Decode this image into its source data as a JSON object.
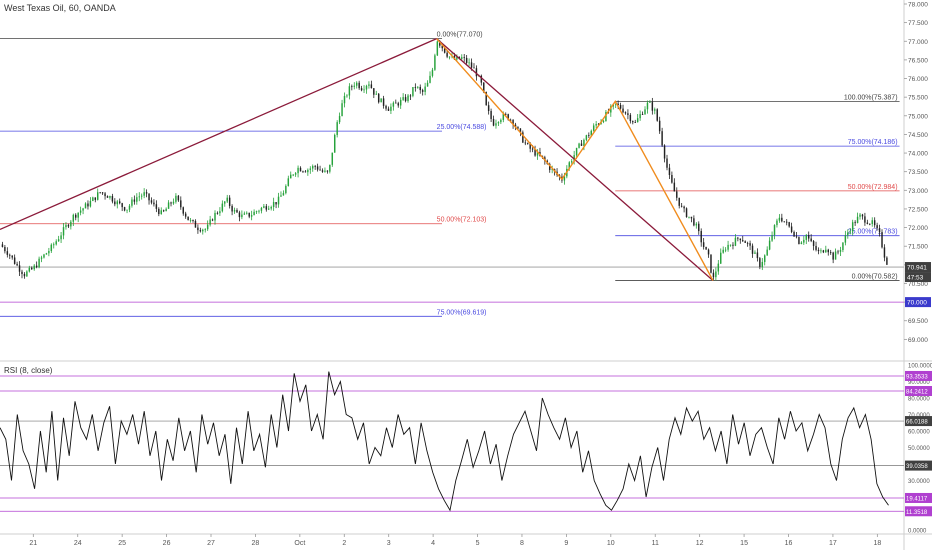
{
  "title": "West Texas Oil, 60, OANDA",
  "rsi_title": "RSI (8, close)",
  "colors": {
    "up": "#26a23b",
    "down": "#222222",
    "trend": "#8b1a3a",
    "harmonic": "#f08c1e",
    "fib_black": "#444444",
    "fib_blue": "#4a4ae0",
    "fib_red": "#e04a4a",
    "price_tag_dark": "#404040",
    "tag_violet": "#b040d0",
    "tag_blue": "#3a3acc"
  },
  "chart_data": [
    {
      "type": "candlestick",
      "symbol": "West Texas Oil",
      "timeframe": "60",
      "ylim": [
        68.5,
        78.0
      ],
      "y_ticks": [
        "78.000",
        "77.500",
        "77.000",
        "76.500",
        "76.000",
        "75.500",
        "75.000",
        "74.500",
        "74.000",
        "73.500",
        "73.000",
        "72.500",
        "72.000",
        "71.500",
        "71.000",
        "70.500",
        "70.000",
        "69.500",
        "69.000"
      ],
      "x_ticks": [
        {
          "t": 0.0,
          "label": "21"
        },
        {
          "t": 1.0,
          "label": "24"
        },
        {
          "t": 2.0,
          "label": "25"
        },
        {
          "t": 3.0,
          "label": "26"
        },
        {
          "t": 4.0,
          "label": "27"
        },
        {
          "t": 5.0,
          "label": "28"
        },
        {
          "t": 6.0,
          "label": "Oct"
        },
        {
          "t": 7.0,
          "label": "2"
        },
        {
          "t": 8.0,
          "label": "3"
        },
        {
          "t": 9.0,
          "label": "4"
        },
        {
          "t": 10.0,
          "label": "5"
        },
        {
          "t": 11.0,
          "label": "8"
        },
        {
          "t": 12.0,
          "label": "9"
        },
        {
          "t": 13.0,
          "label": "10"
        },
        {
          "t": 14.0,
          "label": "11"
        },
        {
          "t": 15.0,
          "label": "12"
        },
        {
          "t": 16.0,
          "label": "15"
        },
        {
          "t": 17.0,
          "label": "16"
        },
        {
          "t": 18.0,
          "label": "17"
        },
        {
          "t": 19.0,
          "label": "18"
        }
      ],
      "x_range": [
        -0.75,
        19.6
      ],
      "close_path": [
        [
          -0.75,
          71.55
        ],
        [
          -0.55,
          71.3
        ],
        [
          -0.35,
          70.95
        ],
        [
          -0.2,
          70.75
        ],
        [
          0.0,
          70.9
        ],
        [
          0.2,
          71.2
        ],
        [
          0.4,
          71.45
        ],
        [
          0.55,
          71.7
        ],
        [
          0.75,
          72.05
        ],
        [
          0.9,
          72.3
        ],
        [
          1.1,
          72.5
        ],
        [
          1.3,
          72.7
        ],
        [
          1.5,
          72.95
        ],
        [
          1.7,
          72.85
        ],
        [
          1.9,
          72.65
        ],
        [
          2.1,
          72.5
        ],
        [
          2.3,
          72.8
        ],
        [
          2.5,
          72.9
        ],
        [
          2.7,
          72.6
        ],
        [
          2.9,
          72.35
        ],
        [
          3.05,
          72.6
        ],
        [
          3.2,
          72.8
        ],
        [
          3.35,
          72.5
        ],
        [
          3.5,
          72.2
        ],
        [
          3.7,
          72.0
        ],
        [
          3.9,
          71.95
        ],
        [
          4.05,
          72.3
        ],
        [
          4.2,
          72.5
        ],
        [
          4.35,
          72.75
        ],
        [
          4.5,
          72.45
        ],
        [
          4.7,
          72.3
        ],
        [
          4.9,
          72.35
        ],
        [
          5.1,
          72.5
        ],
        [
          5.3,
          72.6
        ],
        [
          5.5,
          72.7
        ],
        [
          5.65,
          73.0
        ],
        [
          5.8,
          73.4
        ],
        [
          5.95,
          73.6
        ],
        [
          6.15,
          73.55
        ],
        [
          6.35,
          73.65
        ],
        [
          6.5,
          73.5
        ],
        [
          6.65,
          73.45
        ],
        [
          6.75,
          74.2
        ],
        [
          6.85,
          74.9
        ],
        [
          6.95,
          75.3
        ],
        [
          7.1,
          75.7
        ],
        [
          7.25,
          75.9
        ],
        [
          7.4,
          75.75
        ],
        [
          7.55,
          75.9
        ],
        [
          7.7,
          75.55
        ],
        [
          7.85,
          75.35
        ],
        [
          8.0,
          75.2
        ],
        [
          8.15,
          75.3
        ],
        [
          8.3,
          75.4
        ],
        [
          8.45,
          75.5
        ],
        [
          8.6,
          75.8
        ],
        [
          8.75,
          75.6
        ],
        [
          8.9,
          75.9
        ],
        [
          9.0,
          76.3
        ],
        [
          9.08,
          77.07
        ],
        [
          9.2,
          76.85
        ],
        [
          9.35,
          76.6
        ],
        [
          9.5,
          76.5
        ],
        [
          9.65,
          76.55
        ],
        [
          9.8,
          76.4
        ],
        [
          9.95,
          76.2
        ],
        [
          10.1,
          75.8
        ],
        [
          10.2,
          75.2
        ],
        [
          10.35,
          74.8
        ],
        [
          10.5,
          74.95
        ],
        [
          10.65,
          75.0
        ],
        [
          10.8,
          74.85
        ],
        [
          10.95,
          74.5
        ],
        [
          11.1,
          74.2
        ],
        [
          11.3,
          74.0
        ],
        [
          11.5,
          73.8
        ],
        [
          11.7,
          73.5
        ],
        [
          11.9,
          73.3
        ],
        [
          12.05,
          73.7
        ],
        [
          12.2,
          74.0
        ],
        [
          12.35,
          74.3
        ],
        [
          12.5,
          74.5
        ],
        [
          12.65,
          74.75
        ],
        [
          12.8,
          74.9
        ],
        [
          12.95,
          75.1
        ],
        [
          13.1,
          75.3
        ],
        [
          13.25,
          75.2
        ],
        [
          13.4,
          75.0
        ],
        [
          13.55,
          74.8
        ],
        [
          13.7,
          75.1
        ],
        [
          13.85,
          75.35
        ],
        [
          14.0,
          75.1
        ],
        [
          14.1,
          74.6
        ],
        [
          14.2,
          74.0
        ],
        [
          14.3,
          73.4
        ],
        [
          14.45,
          72.9
        ],
        [
          14.6,
          72.5
        ],
        [
          14.75,
          72.3
        ],
        [
          14.9,
          72.1
        ],
        [
          15.05,
          71.6
        ],
        [
          15.2,
          71.2
        ],
        [
          15.3,
          70.58
        ],
        [
          15.45,
          71.2
        ],
        [
          15.6,
          71.5
        ],
        [
          15.75,
          71.6
        ],
        [
          15.9,
          71.75
        ],
        [
          16.05,
          71.6
        ],
        [
          16.2,
          71.35
        ],
        [
          16.35,
          71.0
        ],
        [
          16.5,
          71.3
        ],
        [
          16.65,
          71.9
        ],
        [
          16.8,
          72.3
        ],
        [
          16.95,
          72.1
        ],
        [
          17.1,
          71.9
        ],
        [
          17.25,
          71.6
        ],
        [
          17.4,
          71.8
        ],
        [
          17.55,
          71.5
        ],
        [
          17.7,
          71.3
        ],
        [
          17.85,
          71.5
        ],
        [
          18.0,
          71.2
        ],
        [
          18.15,
          71.4
        ],
        [
          18.3,
          71.8
        ],
        [
          18.45,
          72.1
        ],
        [
          18.6,
          72.3
        ],
        [
          18.75,
          72.2
        ],
        [
          18.9,
          72.1
        ],
        [
          19.05,
          71.8
        ],
        [
          19.15,
          71.3
        ],
        [
          19.25,
          70.95
        ]
      ],
      "trend_lines": [
        {
          "from": [
            -0.75,
            71.95
          ],
          "to": [
            9.08,
            77.07
          ]
        },
        {
          "from": [
            9.08,
            77.07
          ],
          "to": [
            15.3,
            70.58
          ]
        }
      ],
      "harmonic_pattern": [
        [
          9.08,
          77.07
        ],
        [
          11.9,
          73.3
        ],
        [
          13.1,
          75.39
        ],
        [
          15.3,
          70.58
        ]
      ],
      "fib_left": {
        "x_from": -0.75,
        "x_to": 9.2,
        "levels": [
          {
            "pct": "0.00%",
            "price": "77.070",
            "value": 77.07,
            "color": "black"
          },
          {
            "pct": "25.00%",
            "price": "74.588",
            "value": 74.588,
            "color": "blue"
          },
          {
            "pct": "50.00%",
            "price": "72.103",
            "value": 72.103,
            "color": "red"
          },
          {
            "pct": "75.00%",
            "price": "69.619",
            "value": 69.619,
            "color": "blue"
          }
        ]
      },
      "fib_right": {
        "x_from": 13.1,
        "x_to": 19.5,
        "levels": [
          {
            "pct": "100.00%",
            "price": "75.387",
            "value": 75.387,
            "color": "black"
          },
          {
            "pct": "75.00%",
            "price": "74.186",
            "value": 74.186,
            "color": "blue"
          },
          {
            "pct": "50.00%",
            "price": "72.984",
            "value": 72.984,
            "color": "red"
          },
          {
            "pct": "25.00%",
            "price": "71.783",
            "value": 71.783,
            "color": "blue"
          },
          {
            "pct": "0.00%",
            "price": "70.582",
            "value": 70.582,
            "color": "black"
          }
        ]
      },
      "horizontal_lines": [
        {
          "value": 70.941,
          "color": "#999999"
        },
        {
          "value": 70.0,
          "color": "#b040d0"
        }
      ],
      "price_tags": [
        {
          "label": "70.941",
          "value": 70.941,
          "style": "dark"
        },
        {
          "label": "47:53",
          "value": 70.58,
          "style": "dark"
        },
        {
          "label": "70.000",
          "value": 70.0,
          "style": "blue"
        }
      ]
    },
    {
      "type": "line",
      "title": "RSI (8, close)",
      "ylim": [
        0,
        100
      ],
      "y_ticks": [
        "100.0000",
        "90.0000",
        "80.0000",
        "70.0000",
        "60.0000",
        "50.0000",
        "40.0000",
        "30.0000",
        "20.0000",
        "10.0000",
        "0.0000"
      ],
      "levels": [
        {
          "label": "93.3533",
          "value": 93.3533,
          "color": "violet"
        },
        {
          "label": "84.2412",
          "value": 84.2412,
          "color": "violet"
        },
        {
          "label": "66.0188",
          "value": 66.0188,
          "color": "dark"
        },
        {
          "label": "39.0358",
          "value": 39.0358,
          "color": "dark"
        },
        {
          "label": "19.4117",
          "value": 19.4117,
          "color": "violet"
        },
        {
          "label": "11.3518",
          "value": 11.3518,
          "color": "violet"
        }
      ],
      "rsi_values": [
        62,
        55,
        30,
        70,
        48,
        40,
        25,
        60,
        35,
        72,
        30,
        68,
        45,
        78,
        62,
        55,
        70,
        48,
        65,
        75,
        40,
        66,
        58,
        70,
        52,
        72,
        45,
        60,
        30,
        55,
        42,
        68,
        48,
        60,
        35,
        70,
        52,
        65,
        45,
        58,
        28,
        62,
        40,
        72,
        48,
        58,
        38,
        70,
        50,
        82,
        60,
        95,
        78,
        88,
        60,
        70,
        55,
        96,
        82,
        90,
        70,
        68,
        55,
        65,
        40,
        50,
        45,
        62,
        50,
        70,
        58,
        62,
        40,
        65,
        48,
        35,
        25,
        18,
        12,
        30,
        42,
        55,
        38,
        48,
        60,
        40,
        52,
        30,
        45,
        58,
        65,
        72,
        60,
        48,
        80,
        70,
        62,
        55,
        68,
        50,
        60,
        35,
        48,
        30,
        22,
        15,
        12,
        18,
        25,
        40,
        30,
        45,
        20,
        38,
        50,
        30,
        55,
        68,
        58,
        74,
        66,
        72,
        55,
        62,
        48,
        60,
        40,
        70,
        52,
        65,
        45,
        58,
        62,
        50,
        40,
        68,
        55,
        72,
        60,
        65,
        48,
        58,
        70,
        62,
        40,
        30,
        55,
        68,
        74,
        62,
        70,
        55,
        28,
        20,
        15
      ]
    }
  ]
}
